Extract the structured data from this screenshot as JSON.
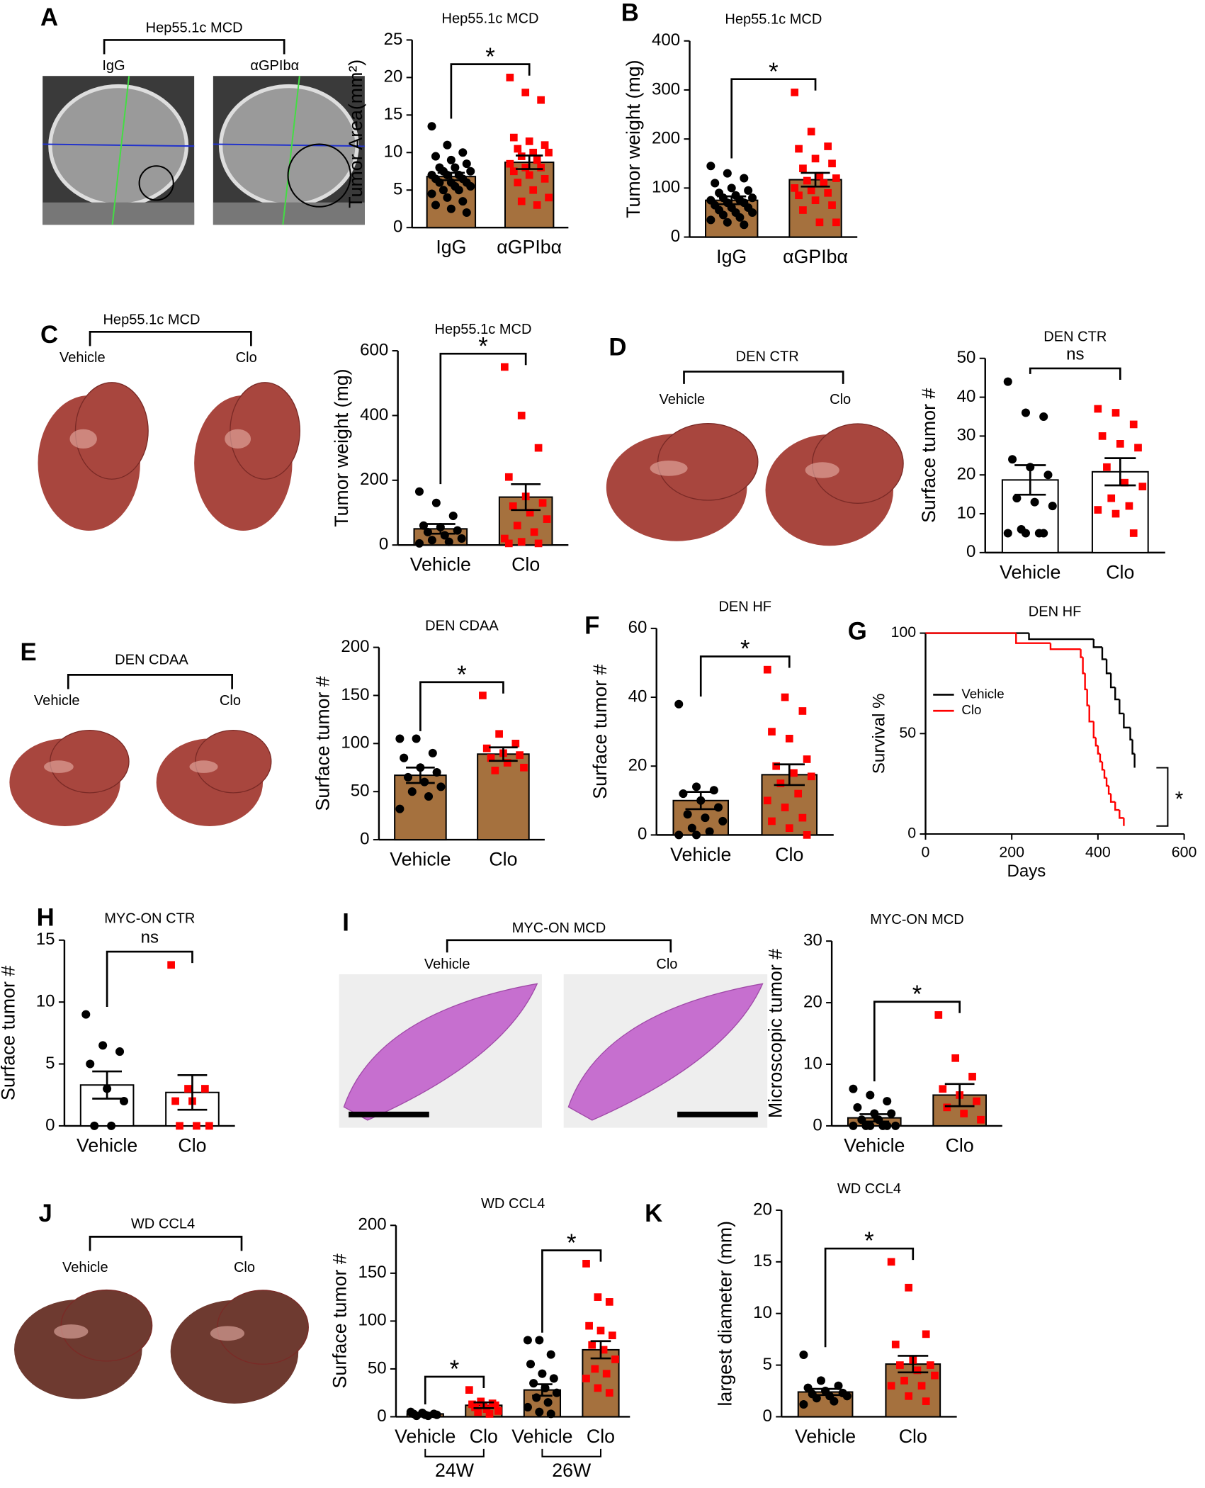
{
  "panels": [
    "A",
    "B",
    "C",
    "D",
    "E",
    "F",
    "G",
    "H",
    "I",
    "J",
    "K"
  ],
  "images": [
    {
      "title": "Hep55.1c MCD",
      "left": "IgG",
      "right": "αGPIbα"
    },
    {
      "title": "Hep55.1c  MCD",
      "left": "Vehicle",
      "right": "Clo"
    },
    {
      "title": "DEN CTR",
      "left": "Vehicle",
      "right": "Clo"
    },
    {
      "title": "DEN CDAA",
      "left": "Vehicle",
      "right": "Clo"
    },
    {
      "title": "MYC-ON  MCD",
      "left": "Vehicle",
      "right": "Clo"
    },
    {
      "title": "WD CCL4",
      "left": "Vehicle",
      "right": "Clo"
    }
  ],
  "chart_data": [
    {
      "type": "bar",
      "title": "Hep55.1c MCD",
      "ylabel": "Tumor Area(mm²)",
      "categories": [
        "IgG",
        "αGPIbα"
      ],
      "values": [
        6.8,
        8.7
      ],
      "errors": [
        0.5,
        0.9
      ],
      "bar_color": "#a5713e",
      "point_colors": [
        "#000000",
        "#ff0000"
      ],
      "ylim": [
        0,
        25
      ],
      "yticks": [
        0,
        5,
        10,
        15,
        20,
        25
      ],
      "points": [
        [
          13.5,
          11,
          10,
          9.5,
          9,
          8.5,
          8,
          8,
          7.5,
          7.5,
          7,
          7,
          7,
          6.5,
          6.5,
          6,
          6,
          6,
          5.5,
          5.5,
          5,
          5,
          4.5,
          4,
          3.5,
          3,
          2.5,
          2
        ],
        [
          20,
          18,
          17,
          12,
          11.5,
          11,
          10.5,
          10,
          10,
          9.5,
          9,
          8.5,
          8,
          8,
          7.5,
          7,
          6.5,
          6,
          5,
          4,
          3.5,
          3
        ]
      ],
      "brackets": [
        {
          "label": "*",
          "between": [
            0,
            1
          ]
        }
      ]
    },
    {
      "type": "bar",
      "title": "Hep55.1c MCD",
      "ylabel": "Tumor weight (mg)",
      "categories": [
        "IgG",
        "αGPIbα"
      ],
      "values": [
        75,
        117
      ],
      "errors": [
        8,
        14
      ],
      "bar_color": "#a5713e",
      "point_colors": [
        "#000000",
        "#ff0000"
      ],
      "ylim": [
        0,
        400
      ],
      "yticks": [
        0,
        100,
        200,
        300,
        400
      ],
      "points": [
        [
          145,
          130,
          120,
          110,
          100,
          95,
          90,
          85,
          80,
          80,
          75,
          75,
          70,
          70,
          65,
          60,
          60,
          55,
          50,
          50,
          45,
          40,
          35,
          30,
          25
        ],
        [
          295,
          215,
          185,
          180,
          160,
          150,
          140,
          125,
          120,
          115,
          110,
          100,
          95,
          90,
          85,
          75,
          65,
          55,
          30,
          30
        ]
      ],
      "brackets": [
        {
          "label": "*",
          "between": [
            0,
            1
          ]
        }
      ]
    },
    {
      "type": "bar",
      "title": "Hep55.1c MCD",
      "ylabel": "Tumor weight (mg)",
      "categories": [
        "Vehicle",
        "Clo"
      ],
      "values": [
        50,
        148
      ],
      "errors": [
        15,
        40
      ],
      "bar_color": "#a5713e",
      "point_colors": [
        "#000000",
        "#ff0000"
      ],
      "ylim": [
        0,
        600
      ],
      "yticks": [
        0,
        200,
        400,
        600
      ],
      "points": [
        [
          165,
          130,
          90,
          60,
          55,
          45,
          40,
          30,
          20,
          15,
          10,
          5
        ],
        [
          550,
          400,
          300,
          210,
          150,
          130,
          120,
          100,
          80,
          60,
          40,
          20,
          10,
          5,
          5
        ]
      ],
      "brackets": [
        {
          "label": "*",
          "between": [
            0,
            1
          ]
        }
      ]
    },
    {
      "type": "bar",
      "title": "DEN CTR",
      "ylabel": "Surface tumor #",
      "categories": [
        "Vehicle",
        "Clo"
      ],
      "values": [
        18.7,
        20.8
      ],
      "errors": [
        3.8,
        3.5
      ],
      "bar_color": "#ffffff",
      "point_colors": [
        "#000000",
        "#ff0000"
      ],
      "ylim": [
        0,
        50
      ],
      "yticks": [
        0,
        10,
        20,
        30,
        40,
        50
      ],
      "points": [
        [
          44,
          36,
          35,
          24,
          22,
          20,
          14,
          13,
          12,
          6,
          5,
          5,
          5,
          5
        ],
        [
          37,
          36,
          33,
          30,
          28,
          27,
          22,
          18,
          17,
          14,
          12,
          11,
          10,
          5
        ]
      ],
      "brackets": [
        {
          "label": "ns",
          "between": [
            0,
            1
          ]
        }
      ]
    },
    {
      "type": "bar",
      "title": "DEN CDAA",
      "ylabel": "Surface tumor #",
      "categories": [
        "Vehicle",
        "Clo"
      ],
      "values": [
        67,
        89
      ],
      "errors": [
        8,
        7
      ],
      "bar_color": "#a5713e",
      "point_colors": [
        "#000000",
        "#ff0000"
      ],
      "ylim": [
        0,
        200
      ],
      "yticks": [
        0,
        50,
        100,
        150,
        200
      ],
      "points": [
        [
          105,
          105,
          90,
          85,
          75,
          70,
          65,
          60,
          55,
          50,
          45,
          32
        ],
        [
          150,
          110,
          100,
          95,
          90,
          88,
          85,
          80,
          75,
          72
        ]
      ],
      "brackets": [
        {
          "label": "*",
          "between": [
            0,
            1
          ]
        }
      ]
    },
    {
      "type": "bar",
      "title": "DEN HF",
      "ylabel": "Surface tumor #",
      "categories": [
        "Vehicle",
        "Clo"
      ],
      "values": [
        10,
        17.5
      ],
      "errors": [
        2.5,
        3
      ],
      "bar_color": "#a5713e",
      "point_colors": [
        "#000000",
        "#ff0000"
      ],
      "ylim": [
        0,
        60
      ],
      "yticks": [
        0,
        20,
        40,
        60
      ],
      "points": [
        [
          38,
          14,
          13,
          12,
          10,
          8,
          6,
          5,
          4,
          2,
          1,
          0,
          0
        ],
        [
          48,
          40,
          36,
          30,
          28,
          22,
          20,
          18,
          17,
          15,
          12,
          10,
          8,
          5,
          4,
          2,
          0
        ]
      ],
      "brackets": [
        {
          "label": "*",
          "between": [
            0,
            1
          ]
        }
      ]
    },
    {
      "type": "step",
      "title": "DEN HF",
      "xlabel": "Days",
      "ylabel": "Survival %",
      "xlim": [
        0,
        600
      ],
      "xticks": [
        0,
        200,
        400,
        600
      ],
      "ylim": [
        0,
        100
      ],
      "yticks": [
        0,
        50,
        100
      ],
      "legend": "upper left",
      "annotation": "*",
      "series": [
        {
          "name": "Vehicle",
          "color": "#000000",
          "x": [
            0,
            240,
            390,
            410,
            420,
            430,
            440,
            450,
            460,
            475,
            480,
            485
          ],
          "values": [
            100,
            97,
            93,
            87,
            80,
            73,
            67,
            60,
            53,
            47,
            40,
            33
          ]
        },
        {
          "name": "Clo",
          "color": "#ff0000",
          "x": [
            0,
            210,
            290,
            360,
            365,
            370,
            375,
            380,
            390,
            395,
            400,
            405,
            410,
            415,
            420,
            425,
            430,
            440,
            450,
            460
          ],
          "values": [
            100,
            95,
            92,
            88,
            80,
            72,
            64,
            56,
            48,
            44,
            40,
            36,
            32,
            28,
            24,
            20,
            16,
            12,
            8,
            4
          ]
        }
      ]
    },
    {
      "type": "bar",
      "title": "MYC-ON CTR",
      "ylabel": "Surface tumor #",
      "categories": [
        "Vehicle",
        "Clo"
      ],
      "values": [
        3.3,
        2.7
      ],
      "errors": [
        1.1,
        1.4
      ],
      "bar_color": "#ffffff",
      "point_colors": [
        "#000000",
        "#ff0000"
      ],
      "ylim": [
        0,
        15
      ],
      "yticks": [
        0,
        5,
        10,
        15
      ],
      "points": [
        [
          9,
          6.5,
          6,
          5,
          3,
          2,
          0,
          0
        ],
        [
          13,
          3,
          3,
          2,
          2,
          0,
          0,
          0
        ]
      ],
      "brackets": [
        {
          "label": "ns",
          "between": [
            0,
            1
          ]
        }
      ]
    },
    {
      "type": "bar",
      "title": "MYC-ON MCD",
      "ylabel": "Microscopic tumor #",
      "categories": [
        "Vehicle",
        "Clo"
      ],
      "values": [
        1.3,
        5
      ],
      "errors": [
        0.6,
        1.8
      ],
      "bar_color": "#a5713e",
      "point_colors": [
        "#000000",
        "#ff0000"
      ],
      "ylim": [
        0,
        30
      ],
      "yticks": [
        0,
        10,
        20,
        30
      ],
      "points": [
        [
          6,
          5,
          4,
          3,
          2,
          2,
          1,
          1,
          0,
          0,
          0,
          0,
          0,
          0
        ],
        [
          18,
          11,
          8,
          6,
          5,
          4,
          3,
          2,
          1
        ]
      ],
      "brackets": [
        {
          "label": "*",
          "between": [
            0,
            1
          ]
        }
      ]
    },
    {
      "type": "bar",
      "title": "WD CCL4",
      "ylabel": "Surface tumor #",
      "categories": [
        "Vehicle",
        "Clo",
        "Vehicle",
        "Clo"
      ],
      "values": [
        3,
        12,
        28,
        70
      ],
      "errors": [
        1,
        3,
        6,
        9
      ],
      "bar_color": "#a5713e",
      "point_colors": [
        "#000000",
        "#ff0000",
        "#000000",
        "#ff0000"
      ],
      "ylim": [
        0,
        200
      ],
      "yticks": [
        0,
        50,
        100,
        150,
        200
      ],
      "points": [
        [
          5,
          4,
          3,
          3,
          2,
          2,
          1,
          1
        ],
        [
          28,
          16,
          14,
          13,
          12,
          12,
          10,
          8,
          6,
          5,
          3
        ],
        [
          80,
          80,
          65,
          55,
          45,
          40,
          35,
          30,
          25,
          20,
          15,
          10,
          5,
          3
        ],
        [
          160,
          125,
          120,
          95,
          90,
          85,
          75,
          70,
          60,
          50,
          45,
          40,
          30,
          25
        ]
      ],
      "brackets": [
        {
          "label": "*",
          "between": [
            0,
            1
          ]
        },
        {
          "label": "*",
          "between": [
            2,
            3
          ]
        }
      ],
      "groups": [
        {
          "label": "24W",
          "categories": [
            0,
            1
          ]
        },
        {
          "label": "26W",
          "categories": [
            2,
            3
          ]
        }
      ]
    },
    {
      "type": "bar",
      "title": "WD CCL4",
      "ylabel": "largest diameter (mm)",
      "categories": [
        "Vehicle",
        "Clo"
      ],
      "values": [
        2.4,
        5.1
      ],
      "errors": [
        0.3,
        0.8
      ],
      "bar_color": "#a5713e",
      "point_colors": [
        "#000000",
        "#ff0000"
      ],
      "ylim": [
        0,
        20
      ],
      "yticks": [
        0,
        5,
        10,
        15,
        20
      ],
      "points": [
        [
          6,
          3.5,
          3,
          2.8,
          2.5,
          2.3,
          2.2,
          2,
          2,
          1.8,
          1.5,
          1.2
        ],
        [
          15,
          12.5,
          8,
          7,
          5.5,
          5,
          5,
          4.5,
          4,
          3.5,
          3,
          3,
          2,
          1.5
        ]
      ],
      "brackets": [
        {
          "label": "*",
          "between": [
            0,
            1
          ]
        }
      ]
    }
  ]
}
